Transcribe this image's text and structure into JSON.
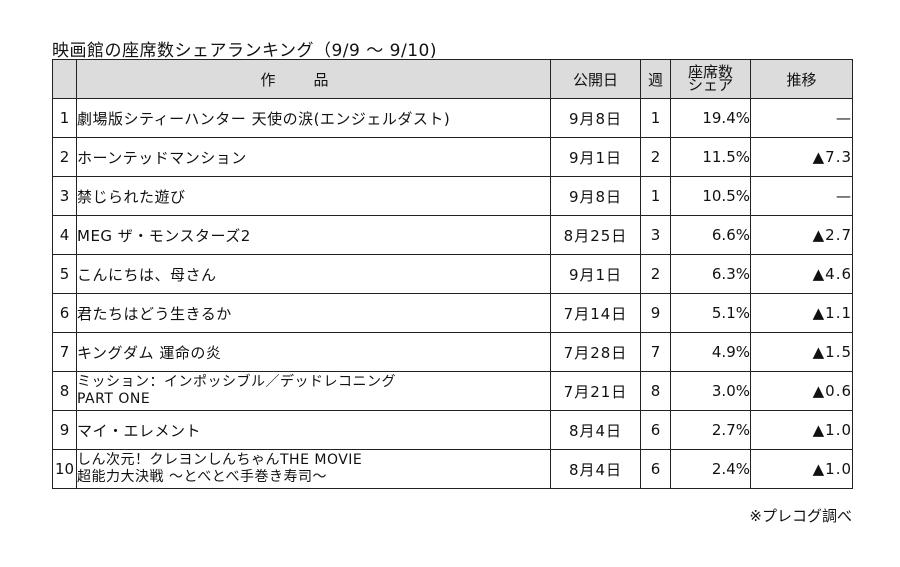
{
  "title": "映画館の座席数シェアランキング（9/9 ～ 9/10)",
  "headers": {
    "rank": "",
    "title": "作品",
    "release": "公開日",
    "weeks": "週",
    "share_line1": "座席数",
    "share_line2": "シェア",
    "move": "推移"
  },
  "rows": [
    {
      "rank": "1",
      "title": [
        "劇場版シティーハンター 天使の涙(エンジェルダスト)"
      ],
      "release": "9月8日",
      "weeks": "1",
      "share": "19.4%",
      "move": "—"
    },
    {
      "rank": "2",
      "title": [
        "ホーンテッドマンション"
      ],
      "release": "9月1日",
      "weeks": "2",
      "share": "11.5%",
      "move": "▲7.3"
    },
    {
      "rank": "3",
      "title": [
        "禁じられた遊び"
      ],
      "release": "9月8日",
      "weeks": "1",
      "share": "10.5%",
      "move": "—"
    },
    {
      "rank": "4",
      "title": [
        "MEG ザ・モンスターズ2"
      ],
      "release": "8月25日",
      "weeks": "3",
      "share": "6.6%",
      "move": "▲2.7"
    },
    {
      "rank": "5",
      "title": [
        "こんにちは、母さん"
      ],
      "release": "9月1日",
      "weeks": "2",
      "share": "6.3%",
      "move": "▲4.6"
    },
    {
      "rank": "6",
      "title": [
        "君たちはどう生きるか"
      ],
      "release": "7月14日",
      "weeks": "9",
      "share": "5.1%",
      "move": "▲1.1"
    },
    {
      "rank": "7",
      "title": [
        "キングダム 運命の炎"
      ],
      "release": "7月28日",
      "weeks": "7",
      "share": "4.9%",
      "move": "▲1.5"
    },
    {
      "rank": "8",
      "title": [
        "ミッション：インポッシブル／デッドレコニング",
        "PART ONE"
      ],
      "release": "7月21日",
      "weeks": "8",
      "share": "3.0%",
      "move": "▲0.6"
    },
    {
      "rank": "9",
      "title": [
        "マイ・エレメント"
      ],
      "release": "8月4日",
      "weeks": "6",
      "share": "2.7%",
      "move": "▲1.0"
    },
    {
      "rank": "10",
      "title": [
        "しん次元！クレヨンしんちゃんTHE MOVIE",
        "超能力大決戦 ～とべとべ手巻き寿司～"
      ],
      "release": "8月4日",
      "weeks": "6",
      "share": "2.4%",
      "move": "▲1.0"
    }
  ],
  "source": "※プレコグ調べ"
}
